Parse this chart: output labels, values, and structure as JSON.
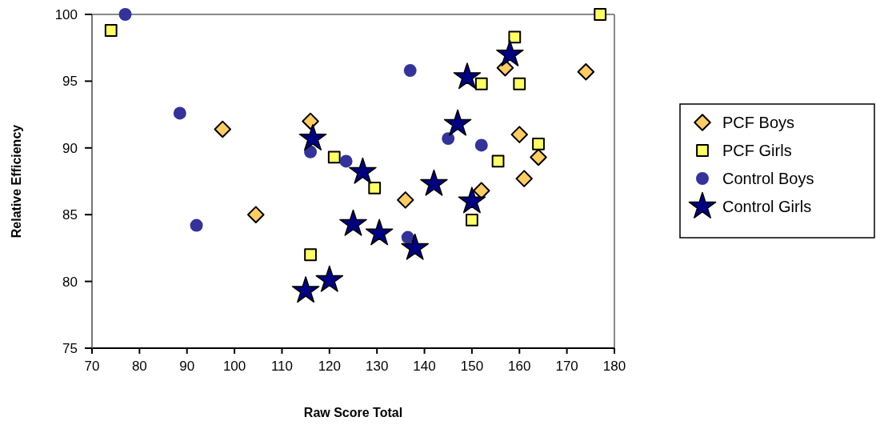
{
  "chart_data": {
    "type": "scatter",
    "xlabel": "Raw Score Total",
    "ylabel": "Relative Efficiency",
    "xlim": [
      70,
      180
    ],
    "xticks": [
      70,
      80,
      90,
      100,
      110,
      120,
      130,
      140,
      150,
      160,
      170,
      180
    ],
    "ylim": [
      75,
      100
    ],
    "yticks": [
      75,
      80,
      85,
      90,
      95,
      100
    ],
    "legend": "right",
    "grid": false,
    "series": [
      {
        "name": "PCF Boys",
        "color": "#ffcc66",
        "marker": "diamond",
        "x": [
          97.5,
          104.5,
          116,
          136,
          152,
          157,
          160,
          161,
          164,
          174
        ],
        "values": [
          91.4,
          85,
          92,
          86.1,
          86.8,
          96,
          91,
          87.7,
          89.3,
          95.7
        ]
      },
      {
        "name": "PCF Girls",
        "color": "#ffff66",
        "marker": "square",
        "x": [
          74,
          116,
          121,
          129.5,
          150,
          152,
          155.5,
          159,
          160,
          164,
          177
        ],
        "values": [
          98.8,
          82,
          89.3,
          87,
          84.6,
          94.8,
          89,
          98.3,
          94.8,
          90.3,
          100
        ]
      },
      {
        "name": "Control Boys",
        "color": "#333399",
        "marker": "circle",
        "x": [
          77,
          88.5,
          92,
          116,
          123.5,
          137,
          136.5,
          145,
          152
        ],
        "values": [
          100,
          92.6,
          84.2,
          89.7,
          89,
          95.8,
          83.3,
          90.7,
          90.2
        ]
      },
      {
        "name": "Control Girls",
        "color": "#000080",
        "marker": "star",
        "x": [
          115,
          116.5,
          120,
          125,
          127,
          130.5,
          138,
          142,
          147,
          149,
          150,
          158
        ],
        "values": [
          79.3,
          90.7,
          80.1,
          84.3,
          88.2,
          83.6,
          82.5,
          87.3,
          91.8,
          95.3,
          86,
          97
        ]
      }
    ]
  }
}
